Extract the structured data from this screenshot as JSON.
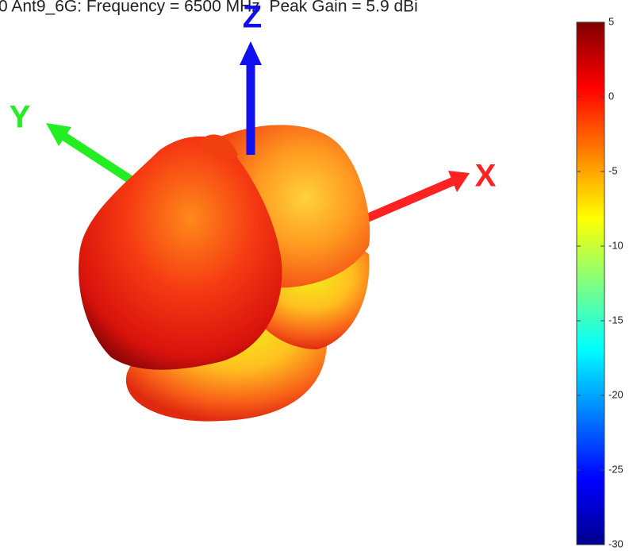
{
  "chart_data": {
    "type": "radiation-pattern",
    "title": "0 Ant9_6G: Frequency = 6500 MHz  Peak Gain = 5.9 dBi",
    "axis_labels": {
      "x": "X",
      "y": "Y",
      "z": "Z"
    },
    "colorbar": {
      "colormap": "jet",
      "clim": [
        -30,
        5
      ],
      "ticks": [
        5,
        0,
        -5,
        -10,
        -15,
        -20,
        -25,
        -30
      ]
    }
  }
}
